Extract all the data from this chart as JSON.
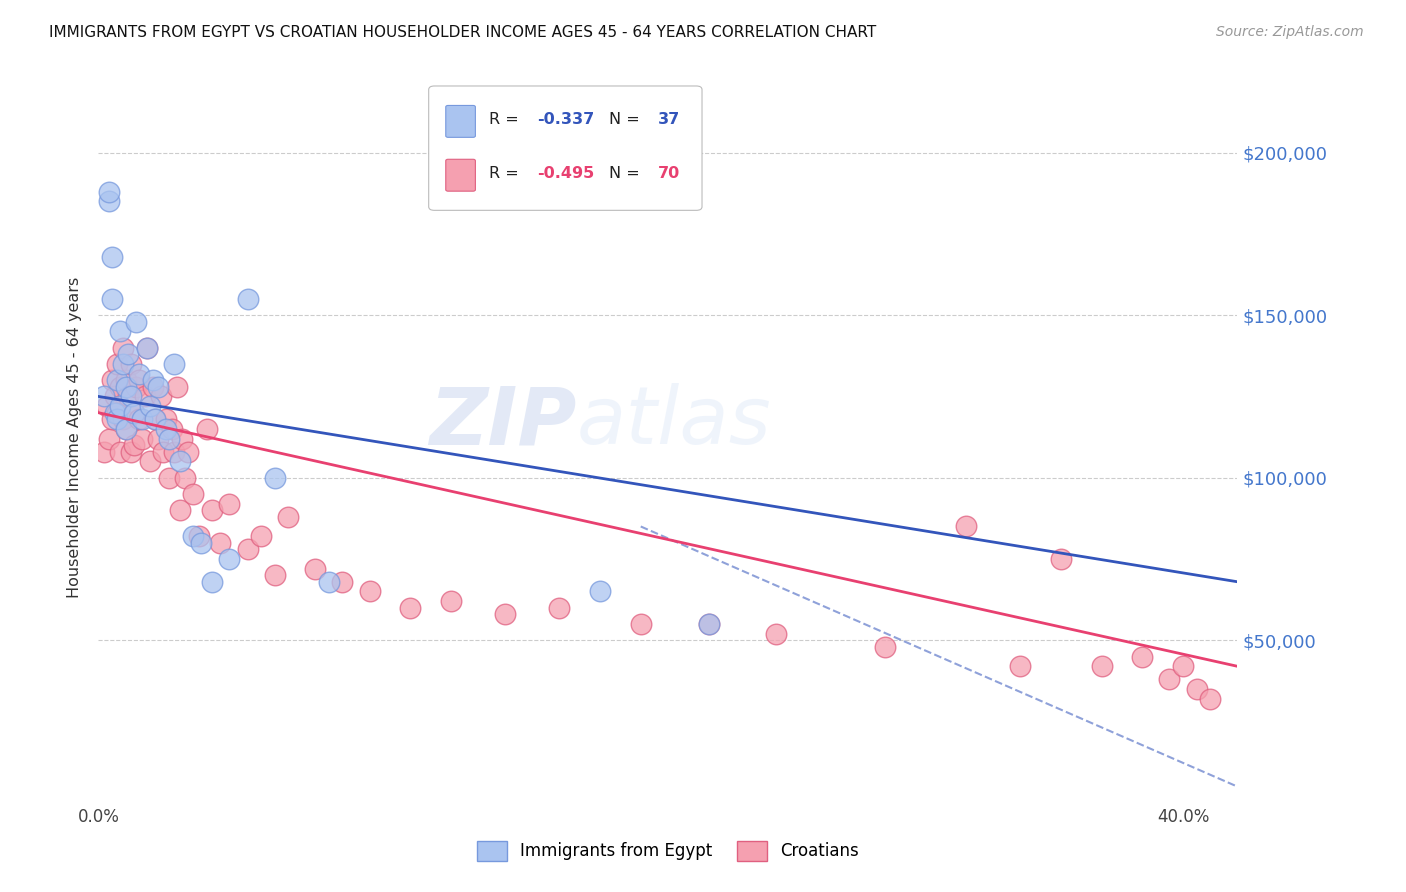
{
  "title": "IMMIGRANTS FROM EGYPT VS CROATIAN HOUSEHOLDER INCOME AGES 45 - 64 YEARS CORRELATION CHART",
  "source": "Source: ZipAtlas.com",
  "ylabel": "Householder Income Ages 45 - 64 years",
  "ytick_labels": [
    "$50,000",
    "$100,000",
    "$150,000",
    "$200,000"
  ],
  "ytick_values": [
    50000,
    100000,
    150000,
    200000
  ],
  "xlim": [
    0.0,
    0.42
  ],
  "ylim": [
    0,
    225000
  ],
  "watermark_zip": "ZIP",
  "watermark_atlas": "atlas",
  "egypt_color": "#aac4f0",
  "croatian_color": "#f5a0b0",
  "egypt_edge": "#7799dd",
  "croatian_edge": "#e06080",
  "egypt_line_color": "#3355bb",
  "croatian_line_color": "#e84070",
  "egypt_scatter_x": [
    0.002,
    0.004,
    0.004,
    0.005,
    0.005,
    0.006,
    0.007,
    0.007,
    0.008,
    0.008,
    0.009,
    0.01,
    0.01,
    0.011,
    0.012,
    0.013,
    0.014,
    0.015,
    0.016,
    0.018,
    0.019,
    0.02,
    0.021,
    0.022,
    0.025,
    0.026,
    0.028,
    0.03,
    0.035,
    0.038,
    0.042,
    0.048,
    0.055,
    0.065,
    0.085,
    0.185,
    0.225
  ],
  "egypt_scatter_y": [
    125000,
    185000,
    188000,
    168000,
    155000,
    120000,
    130000,
    118000,
    145000,
    122000,
    135000,
    128000,
    115000,
    138000,
    125000,
    120000,
    148000,
    132000,
    118000,
    140000,
    122000,
    130000,
    118000,
    128000,
    115000,
    112000,
    135000,
    105000,
    82000,
    80000,
    68000,
    75000,
    155000,
    100000,
    68000,
    65000,
    55000
  ],
  "croatian_scatter_x": [
    0.002,
    0.003,
    0.004,
    0.005,
    0.005,
    0.006,
    0.007,
    0.007,
    0.008,
    0.008,
    0.009,
    0.009,
    0.01,
    0.01,
    0.011,
    0.012,
    0.012,
    0.013,
    0.013,
    0.014,
    0.015,
    0.015,
    0.016,
    0.017,
    0.018,
    0.019,
    0.02,
    0.021,
    0.022,
    0.023,
    0.024,
    0.025,
    0.026,
    0.027,
    0.028,
    0.029,
    0.03,
    0.031,
    0.032,
    0.033,
    0.035,
    0.037,
    0.04,
    0.042,
    0.045,
    0.048,
    0.055,
    0.06,
    0.065,
    0.07,
    0.08,
    0.09,
    0.1,
    0.115,
    0.13,
    0.15,
    0.17,
    0.2,
    0.225,
    0.25,
    0.29,
    0.32,
    0.34,
    0.355,
    0.37,
    0.385,
    0.395,
    0.4,
    0.405,
    0.41
  ],
  "croatian_scatter_y": [
    108000,
    122000,
    112000,
    130000,
    118000,
    125000,
    120000,
    135000,
    108000,
    128000,
    140000,
    118000,
    130000,
    115000,
    125000,
    108000,
    135000,
    120000,
    110000,
    128000,
    118000,
    130000,
    112000,
    125000,
    140000,
    105000,
    128000,
    118000,
    112000,
    125000,
    108000,
    118000,
    100000,
    115000,
    108000,
    128000,
    90000,
    112000,
    100000,
    108000,
    95000,
    82000,
    115000,
    90000,
    80000,
    92000,
    78000,
    82000,
    70000,
    88000,
    72000,
    68000,
    65000,
    60000,
    62000,
    58000,
    60000,
    55000,
    55000,
    52000,
    48000,
    85000,
    42000,
    75000,
    42000,
    45000,
    38000,
    42000,
    35000,
    32000
  ],
  "egypt_trend": [
    0.0,
    0.42,
    125000,
    68000
  ],
  "croatian_trend": [
    0.0,
    0.42,
    120000,
    42000
  ],
  "egypt_dashed": [
    0.2,
    0.42,
    85000,
    5000
  ],
  "background_color": "#ffffff",
  "grid_color": "#cccccc",
  "right_label_color": "#4477cc",
  "legend_r1_val": "-0.337",
  "legend_n1_val": "37",
  "legend_r2_val": "-0.495",
  "legend_n2_val": "70"
}
